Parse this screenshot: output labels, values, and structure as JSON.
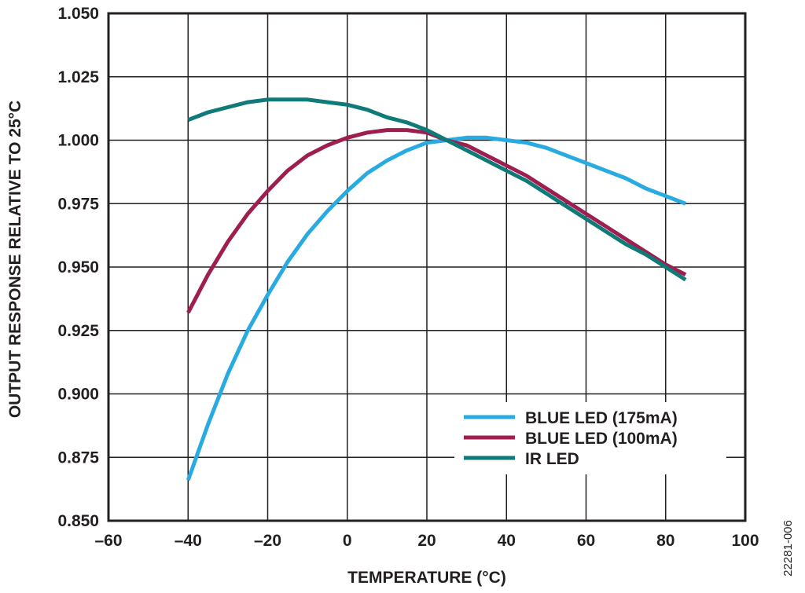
{
  "chart_data": {
    "type": "line",
    "xlabel": "TEMPERATURE (°C)",
    "ylabel": "OUTPUT RESPONSE RELATIVE TO 25°C",
    "xlim": [
      -60,
      100
    ],
    "ylim": [
      0.85,
      1.05
    ],
    "x_ticks": [
      -60,
      -40,
      -20,
      0,
      20,
      40,
      60,
      80,
      100
    ],
    "x_tick_labels": [
      "–60",
      "–40",
      "–20",
      "0",
      "20",
      "40",
      "60",
      "80",
      "100"
    ],
    "y_ticks": [
      0.85,
      0.875,
      0.9,
      0.925,
      0.95,
      0.975,
      1.0,
      1.025,
      1.05
    ],
    "y_tick_labels": [
      "0.850",
      "0.875",
      "0.900",
      "0.925",
      "0.950",
      "0.975",
      "1.000",
      "1.025",
      "1.050"
    ],
    "grid": true,
    "legend_position": "bottom-right",
    "series": [
      {
        "name": "BLUE LED (175mA)",
        "color": "#29abe2",
        "x": [
          -40,
          -35,
          -30,
          -25,
          -20,
          -15,
          -10,
          -5,
          0,
          5,
          10,
          15,
          20,
          25,
          30,
          35,
          40,
          45,
          50,
          55,
          60,
          65,
          70,
          75,
          80,
          85
        ],
        "y": [
          0.866,
          0.888,
          0.908,
          0.925,
          0.939,
          0.952,
          0.963,
          0.972,
          0.98,
          0.987,
          0.992,
          0.996,
          0.999,
          1.0,
          1.001,
          1.001,
          1.0,
          0.999,
          0.997,
          0.994,
          0.991,
          0.988,
          0.985,
          0.981,
          0.978,
          0.975
        ]
      },
      {
        "name": "BLUE LED (100mA)",
        "color": "#9e1f4f",
        "x": [
          -40,
          -35,
          -30,
          -25,
          -20,
          -15,
          -10,
          -5,
          0,
          5,
          10,
          15,
          20,
          25,
          30,
          35,
          40,
          45,
          50,
          55,
          60,
          65,
          70,
          75,
          80,
          85
        ],
        "y": [
          0.932,
          0.947,
          0.96,
          0.971,
          0.98,
          0.988,
          0.994,
          0.998,
          1.001,
          1.003,
          1.004,
          1.004,
          1.003,
          1.0,
          0.998,
          0.994,
          0.99,
          0.986,
          0.981,
          0.976,
          0.971,
          0.966,
          0.961,
          0.956,
          0.951,
          0.947
        ]
      },
      {
        "name": "IR LED",
        "color": "#0f7a78",
        "x": [
          -40,
          -35,
          -30,
          -25,
          -20,
          -15,
          -10,
          -5,
          0,
          5,
          10,
          15,
          20,
          25,
          30,
          35,
          40,
          45,
          50,
          55,
          60,
          65,
          70,
          75,
          80,
          85
        ],
        "y": [
          1.008,
          1.011,
          1.013,
          1.015,
          1.016,
          1.016,
          1.016,
          1.015,
          1.014,
          1.012,
          1.009,
          1.007,
          1.004,
          1.0,
          0.996,
          0.992,
          0.988,
          0.984,
          0.979,
          0.974,
          0.969,
          0.964,
          0.959,
          0.955,
          0.95,
          0.945
        ]
      }
    ]
  },
  "figure_id": "22281-006"
}
